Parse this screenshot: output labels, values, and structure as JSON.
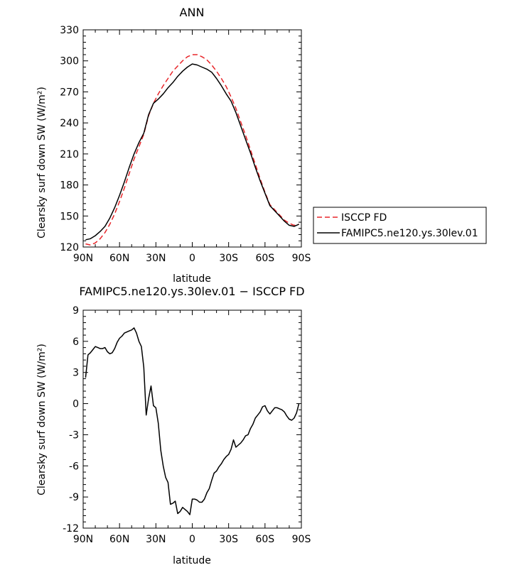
{
  "chart_data": [
    {
      "type": "line",
      "title": "ANN",
      "xlabel": "latitude",
      "ylabel": "Clearsky surf down SW (W/m²)",
      "xlim": [
        90,
        -90
      ],
      "ylim": [
        120,
        330
      ],
      "x_tick_labels": [
        "90N",
        "60N",
        "30N",
        "0",
        "30S",
        "60S",
        "90S"
      ],
      "x_tick_values": [
        90,
        60,
        30,
        0,
        -30,
        -60,
        -90
      ],
      "y_tick_labels": [
        "120",
        "150",
        "180",
        "210",
        "240",
        "270",
        "300",
        "330"
      ],
      "y_tick_values": [
        120,
        150,
        180,
        210,
        240,
        270,
        300,
        330
      ],
      "legend_position": "right",
      "x": [
        88,
        84,
        80,
        76,
        72,
        68,
        64,
        60,
        56,
        52,
        48,
        44,
        40,
        36,
        32,
        28,
        24,
        20,
        16,
        12,
        8,
        4,
        0,
        -4,
        -8,
        -12,
        -16,
        -20,
        -24,
        -28,
        -32,
        -36,
        -40,
        -44,
        -48,
        -52,
        -56,
        -60,
        -64,
        -68,
        -72,
        -76,
        -80,
        -84,
        -88
      ],
      "series": [
        {
          "name": "ISCCP FD",
          "color": "#e8262a",
          "dash": "dashed",
          "values": [
            123,
            122,
            124,
            128,
            134,
            142,
            152,
            164,
            177,
            191,
            205,
            217,
            229,
            247,
            259,
            268,
            276,
            283,
            290,
            295,
            300,
            304,
            306,
            306,
            304,
            301,
            296,
            290,
            283,
            275,
            265,
            254,
            241,
            228,
            214,
            200,
            186,
            173,
            161,
            156,
            151,
            146,
            143,
            141,
            142
          ]
        },
        {
          "name": "FAMIPC5.ne120.ys.30lev.01",
          "color": "#000000",
          "dash": "solid",
          "values": [
            127,
            128,
            131,
            135,
            140,
            148,
            158,
            170,
            183,
            197,
            210,
            221,
            230,
            248,
            259,
            263,
            268,
            274,
            279,
            285,
            290,
            294,
            297,
            296,
            294,
            292,
            289,
            283,
            276,
            268,
            261,
            250,
            237,
            224,
            211,
            197,
            184,
            172,
            160,
            155,
            150,
            145,
            141,
            140,
            142
          ]
        }
      ]
    },
    {
      "type": "line",
      "title": "FAMIPC5.ne120.ys.30lev.01 − ISCCP FD",
      "xlabel": "latitude",
      "ylabel": "Clearsky surf down SW (W/m²)",
      "xlim": [
        90,
        -90
      ],
      "ylim": [
        -12,
        9
      ],
      "x_tick_labels": [
        "90N",
        "60N",
        "30N",
        "0",
        "30S",
        "60S",
        "90S"
      ],
      "x_tick_values": [
        90,
        60,
        30,
        0,
        -30,
        -60,
        -90
      ],
      "y_tick_labels": [
        "-12",
        "-9",
        "-6",
        "-3",
        "0",
        "3",
        "6",
        "9"
      ],
      "y_tick_values": [
        -12,
        -9,
        -6,
        -3,
        0,
        3,
        6,
        9
      ],
      "x": [
        88,
        86,
        84,
        82,
        80,
        78,
        76,
        74,
        72,
        70,
        68,
        66,
        64,
        62,
        60,
        58,
        56,
        54,
        52,
        50,
        48,
        46,
        44,
        42,
        40,
        38,
        36,
        34,
        32,
        30,
        28,
        26,
        24,
        22,
        20,
        18,
        16,
        14,
        12,
        10,
        8,
        6,
        4,
        2,
        0,
        -2,
        -4,
        -6,
        -8,
        -10,
        -12,
        -14,
        -16,
        -18,
        -20,
        -22,
        -24,
        -26,
        -28,
        -30,
        -32,
        -34,
        -36,
        -38,
        -40,
        -42,
        -44,
        -46,
        -48,
        -50,
        -52,
        -54,
        -56,
        -58,
        -60,
        -62,
        -64,
        -66,
        -68,
        -70,
        -72,
        -74,
        -76,
        -78,
        -80,
        -82,
        -84,
        -86,
        -88
      ],
      "values": [
        2.5,
        4.7,
        4.9,
        5.2,
        5.5,
        5.4,
        5.3,
        5.3,
        5.4,
        5.0,
        4.8,
        4.9,
        5.3,
        5.9,
        6.3,
        6.5,
        6.8,
        6.9,
        7.0,
        7.1,
        7.3,
        6.8,
        6.0,
        5.5,
        3.5,
        -1.1,
        0.5,
        1.7,
        -0.2,
        -0.4,
        -1.9,
        -4.5,
        -6.0,
        -7.1,
        -7.6,
        -9.7,
        -9.6,
        -9.4,
        -10.6,
        -10.4,
        -10.0,
        -10.2,
        -10.4,
        -10.7,
        -9.2,
        -9.2,
        -9.3,
        -9.5,
        -9.5,
        -9.2,
        -8.6,
        -8.2,
        -7.4,
        -6.7,
        -6.5,
        -6.1,
        -5.8,
        -5.4,
        -5.1,
        -4.9,
        -4.4,
        -3.5,
        -4.2,
        -4.0,
        -3.8,
        -3.5,
        -3.1,
        -3.0,
        -2.4,
        -2.0,
        -1.4,
        -1.1,
        -0.8,
        -0.3,
        -0.2,
        -0.7,
        -1.0,
        -0.7,
        -0.4,
        -0.4,
        -0.5,
        -0.6,
        -0.8,
        -1.2,
        -1.5,
        -1.6,
        -1.4,
        -0.9,
        0.0
      ]
    }
  ]
}
